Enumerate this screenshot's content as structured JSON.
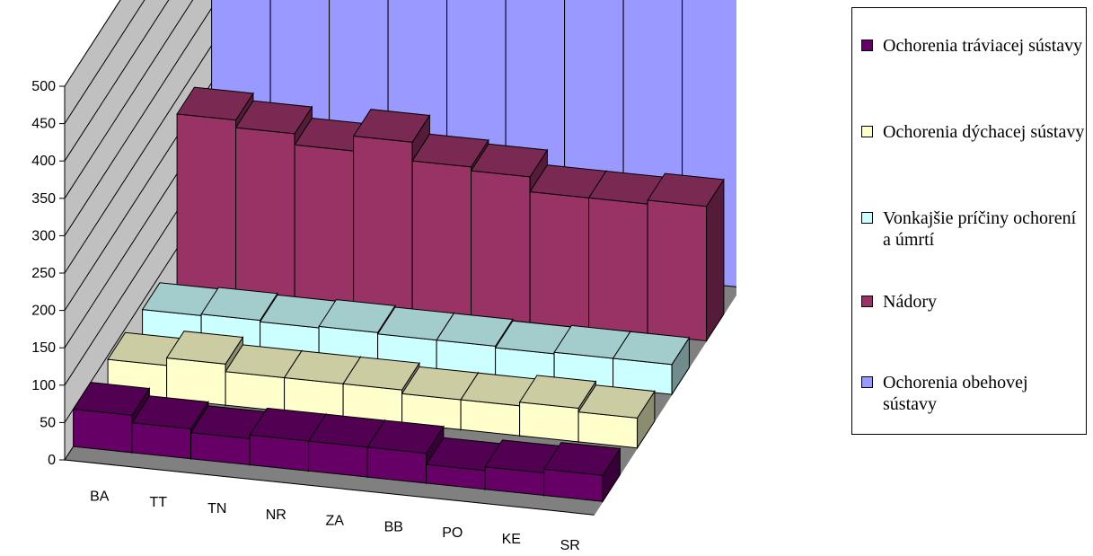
{
  "chart_data": {
    "type": "bar",
    "ylim": [
      0,
      500
    ],
    "yticks": [
      0,
      50,
      100,
      150,
      200,
      250,
      300,
      350,
      400,
      450,
      500
    ],
    "categories": [
      "BA",
      "TT",
      "TN",
      "NR",
      "ZA",
      "BB",
      "PO",
      "KE",
      "SR"
    ],
    "grid": true,
    "legend_position": "right",
    "series": [
      {
        "name": "Ochorenia obehovej sústavy",
        "color": "#9999ff",
        "values": [
          430,
          480,
          480,
          475,
          450,
          510,
          480,
          470,
          460
        ]
      },
      {
        "name": "Nádory",
        "color": "#993366",
        "values": [
          230,
          220,
          205,
          225,
          200,
          195,
          175,
          175,
          180
        ]
      },
      {
        "name": "Vonkajšie príčiny ochorení a úmrtí",
        "color": "#ccffff",
        "values": [
          40,
          42,
          40,
          42,
          40,
          40,
          38,
          40,
          40
        ]
      },
      {
        "name": "Ochorenia dýchacej sústavy",
        "color": "#ffffcc",
        "values": [
          45,
          55,
          45,
          45,
          45,
          40,
          40,
          45,
          40
        ]
      },
      {
        "name": "Ochorenia tráviacej sústavy",
        "color": "#660066",
        "values": [
          50,
          40,
          35,
          40,
          40,
          40,
          25,
          30,
          35
        ]
      }
    ]
  },
  "legend": {
    "items": [
      {
        "label": "Ochorenia tráviacej sústavy",
        "color": "#660066"
      },
      {
        "label": "Ochorenia dýchacej sústavy",
        "color": "#ffffcc"
      },
      {
        "label": "Vonkajšie príčiny ochorení a úmrtí",
        "color": "#ccffff"
      },
      {
        "label": "Nádory",
        "color": "#993366"
      },
      {
        "label": "Ochorenia obehovej sústavy",
        "color": "#9999ff"
      }
    ]
  }
}
